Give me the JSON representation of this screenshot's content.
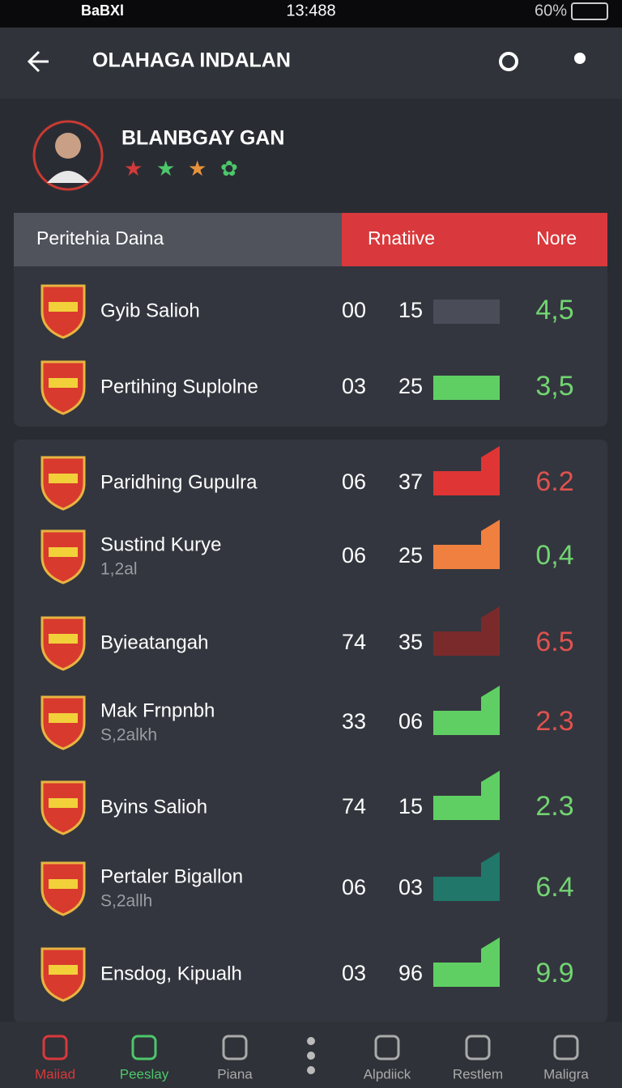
{
  "status_bar": {
    "carrier": "BaBXl",
    "time": "13:488",
    "battery": "60%"
  },
  "header": {
    "title": "OLAHAGA INDALAN"
  },
  "profile": {
    "name": "BLANBGAY GAN"
  },
  "table": {
    "headers": [
      "Peritehia Daina",
      "Rnatiive",
      "Nore"
    ],
    "rows": [
      {
        "name": "Gyib Salioh",
        "a": "00",
        "b": "15",
        "rating": "4,5",
        "bar_color": "#4a4c57",
        "rating_color": "#72d472"
      },
      {
        "name": "Pertihing Suplolne",
        "a": "03",
        "b": "25",
        "rating": "3,5",
        "bar_color": "#5fcf63",
        "rating_color": "#72d472"
      }
    ]
  },
  "list": {
    "rows": [
      {
        "name": "Paridhing Gupulra",
        "a": "06",
        "b": "37",
        "rating": "6.2",
        "bar_color": "#e03535",
        "rating_color": "#e0524e"
      },
      {
        "name": "Sustind Kurye",
        "sub": "1,2al",
        "a": "06",
        "b": "25",
        "rating": "0,4",
        "bar_color": "#f08040",
        "rating_color": "#72d472"
      },
      {
        "name": "Byieatangah",
        "a": "74",
        "b": "35",
        "rating": "6.5",
        "bar_color": "#7a2a2a",
        "rating_color": "#e0524e"
      },
      {
        "name": "Mak Frnpnbh",
        "sub": "S,2alkh",
        "a": "33",
        "b": "06",
        "rating": "2.3",
        "bar_color": "#5fcf63",
        "rating_color": "#e0524e"
      },
      {
        "name": "Byins Salioh",
        "a": "74",
        "b": "15",
        "rating": "2.3",
        "bar_color": "#5fcf63",
        "rating_color": "#72d472"
      },
      {
        "name": "Pertaler Bigallon",
        "sub": "S,2allh",
        "a": "06",
        "b": "03",
        "rating": "6.4",
        "bar_color": "#20776a",
        "rating_color": "#72d472"
      },
      {
        "name": "Ensdog, Kipualh",
        "a": "03",
        "b": "96",
        "rating": "9.9",
        "bar_color": "#5fcf63",
        "rating_color": "#72d472"
      }
    ]
  },
  "nav": {
    "items": [
      "Maiiad",
      "Peeslay",
      "Piana",
      "Alpdiick",
      "Restlem",
      "Maligra"
    ]
  }
}
